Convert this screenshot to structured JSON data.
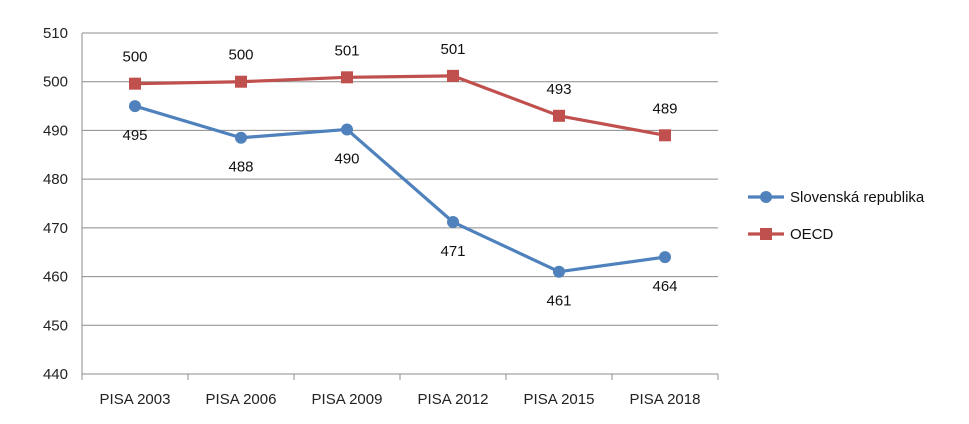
{
  "chart_data": {
    "type": "line",
    "categories": [
      "PISA 2003",
      "PISA 2006",
      "PISA 2009",
      "PISA 2012",
      "PISA 2015",
      "PISA 2018"
    ],
    "ylim": [
      440,
      510
    ],
    "yticks": [
      "440",
      "450",
      "460",
      "470",
      "480",
      "490",
      "500",
      "510"
    ],
    "grid": true,
    "legend": "right",
    "series": [
      {
        "name": "Slovenská republika",
        "values": [
          495,
          488.5,
          490.2,
          471.2,
          461,
          464
        ],
        "labels": [
          "495",
          "488",
          "490",
          "471",
          "461",
          "464"
        ],
        "color": "#4F81BD",
        "marker": "circle"
      },
      {
        "name": "OECD",
        "values": [
          499.6,
          500,
          500.9,
          501.2,
          493,
          489
        ],
        "labels": [
          "500",
          "500",
          "501",
          "501",
          "493",
          "489"
        ],
        "color": "#C0504D",
        "marker": "square"
      }
    ]
  }
}
